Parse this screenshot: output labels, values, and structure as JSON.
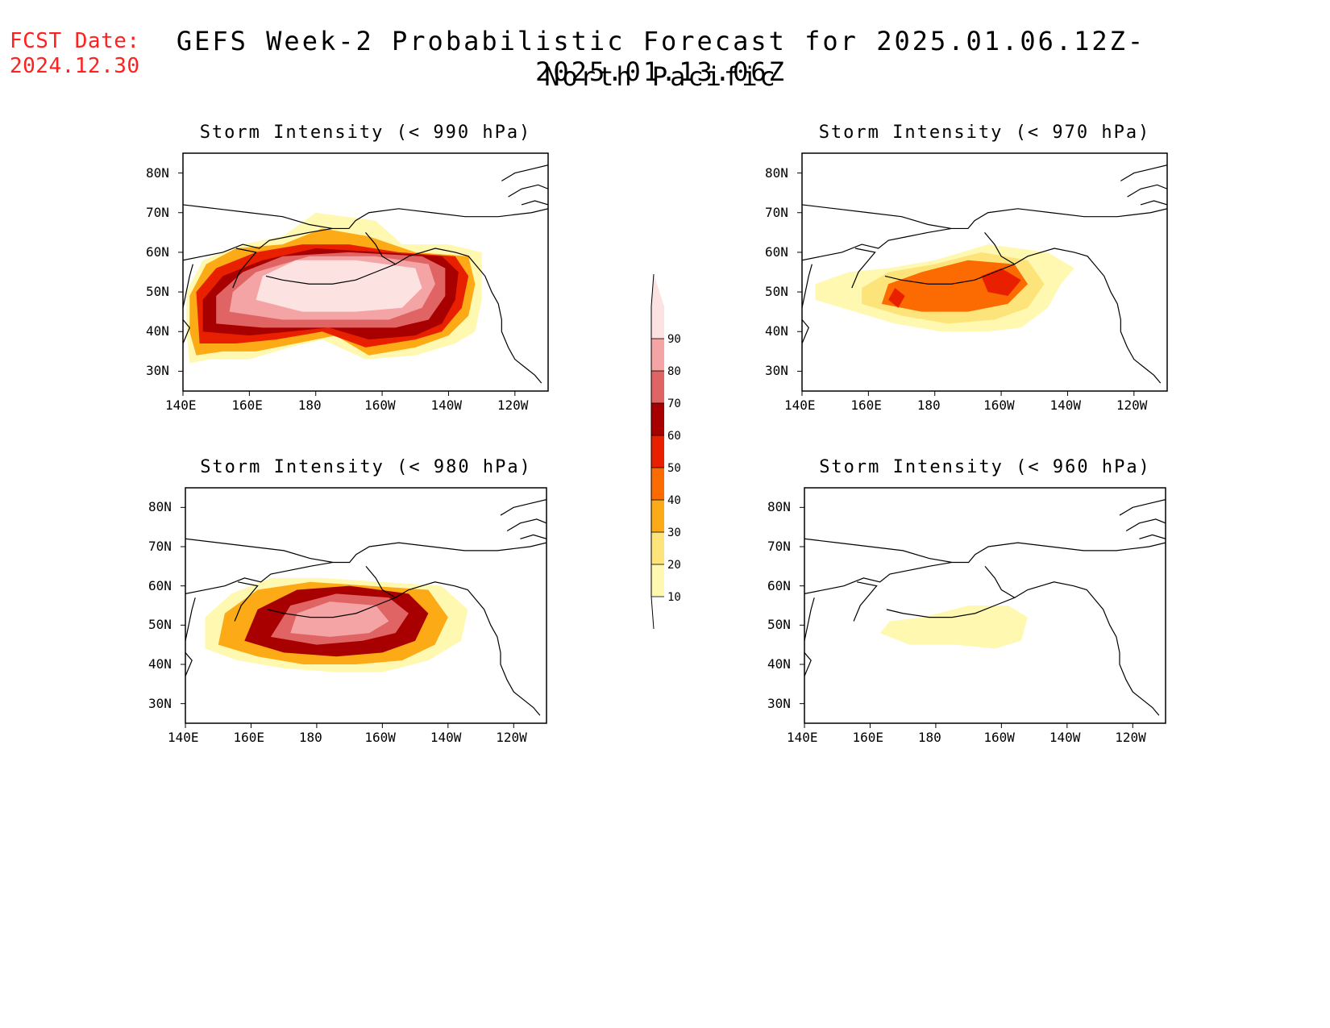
{
  "header": {
    "fcst_label": "FCST Date:",
    "fcst_date": "2024.12.30",
    "title_line1": "GEFS Week-2 Probabilistic Forecast for 2025.01.06.12Z-2025.01.13.06Z",
    "title_line2": "North Pacific"
  },
  "axes": {
    "y_ticks": [
      "80N",
      "70N",
      "60N",
      "50N",
      "40N",
      "30N"
    ],
    "y_values": [
      80,
      70,
      60,
      50,
      40,
      30
    ],
    "x_ticks": [
      "140E",
      "160E",
      "180",
      "160W",
      "140W",
      "120W"
    ],
    "x_values": [
      140,
      160,
      180,
      200,
      220,
      240
    ],
    "lon_range": [
      140,
      250
    ],
    "lat_range": [
      25,
      85
    ]
  },
  "colorbar": {
    "levels": [
      "10",
      "20",
      "30",
      "40",
      "50",
      "60",
      "70",
      "80",
      "90"
    ],
    "colors": [
      "#fff8b0",
      "#fde47a",
      "#fcaa16",
      "#fc6a02",
      "#e82000",
      "#a80000",
      "#e06464",
      "#f4a4a4",
      "#fde2e2"
    ]
  },
  "panels": [
    {
      "id": "p990",
      "title": "Storm Intensity (< 990 hPa)",
      "regions": [
        {
          "level": 10,
          "pts": [
            [
              142,
              32
            ],
            [
              148,
              33
            ],
            [
              160,
              33
            ],
            [
              172,
              36
            ],
            [
              182,
              38
            ],
            [
              195,
              33
            ],
            [
              210,
              34
            ],
            [
              222,
              37
            ],
            [
              228,
              40
            ],
            [
              230,
              48
            ],
            [
              230,
              60
            ],
            [
              220,
              62
            ],
            [
              206,
              62
            ],
            [
              198,
              68
            ],
            [
              180,
              70
            ],
            [
              170,
              64
            ],
            [
              158,
              62
            ],
            [
              146,
              58
            ],
            [
              141,
              50
            ],
            [
              141,
              40
            ]
          ]
        },
        {
          "level": 30,
          "pts": [
            [
              144,
              34
            ],
            [
              152,
              35
            ],
            [
              162,
              35
            ],
            [
              174,
              37
            ],
            [
              186,
              39
            ],
            [
              196,
              34
            ],
            [
              210,
              36
            ],
            [
              220,
              39
            ],
            [
              226,
              44
            ],
            [
              228,
              52
            ],
            [
              226,
              59
            ],
            [
              210,
              60
            ],
            [
              196,
              64
            ],
            [
              182,
              66
            ],
            [
              170,
              62
            ],
            [
              156,
              61
            ],
            [
              147,
              57
            ],
            [
              142,
              49
            ],
            [
              142,
              40
            ]
          ]
        },
        {
          "level": 50,
          "pts": [
            [
              145,
              37
            ],
            [
              156,
              37
            ],
            [
              168,
              38
            ],
            [
              182,
              40
            ],
            [
              195,
              36
            ],
            [
              210,
              38
            ],
            [
              218,
              40
            ],
            [
              224,
              46
            ],
            [
              226,
              54
            ],
            [
              222,
              59
            ],
            [
              205,
              60
            ],
            [
              190,
              62
            ],
            [
              176,
              62
            ],
            [
              162,
              60
            ],
            [
              150,
              56
            ],
            [
              144,
              50
            ]
          ]
        },
        {
          "level": 60,
          "pts": [
            [
              146,
              40
            ],
            [
              160,
              39
            ],
            [
              172,
              40
            ],
            [
              184,
              41
            ],
            [
              196,
              38
            ],
            [
              210,
              39
            ],
            [
              218,
              42
            ],
            [
              222,
              48
            ],
            [
              223,
              55
            ],
            [
              218,
              59
            ],
            [
              200,
              60
            ],
            [
              180,
              61
            ],
            [
              164,
              58
            ],
            [
              152,
              54
            ],
            [
              146,
              48
            ]
          ]
        },
        {
          "level": 70,
          "pts": [
            [
              150,
              42
            ],
            [
              164,
              41
            ],
            [
              176,
              41
            ],
            [
              190,
              41
            ],
            [
              204,
              41
            ],
            [
              214,
              43
            ],
            [
              219,
              49
            ],
            [
              219,
              56
            ],
            [
              212,
              59
            ],
            [
              190,
              60
            ],
            [
              170,
              59
            ],
            [
              158,
              55
            ],
            [
              150,
              49
            ]
          ]
        },
        {
          "level": 80,
          "pts": [
            [
              154,
              45
            ],
            [
              170,
              43
            ],
            [
              186,
              43
            ],
            [
              202,
              43
            ],
            [
              212,
              46
            ],
            [
              216,
              52
            ],
            [
              214,
              57
            ],
            [
              198,
              59
            ],
            [
              178,
              59
            ],
            [
              162,
              55
            ],
            [
              155,
              50
            ]
          ]
        },
        {
          "level": 90,
          "pts": [
            [
              162,
              48
            ],
            [
              176,
              45
            ],
            [
              192,
              45
            ],
            [
              206,
              46
            ],
            [
              212,
              51
            ],
            [
              210,
              56
            ],
            [
              192,
              58
            ],
            [
              174,
              58
            ],
            [
              164,
              54
            ]
          ]
        }
      ]
    },
    {
      "id": "p970",
      "title": "Storm Intensity (< 970 hPa)",
      "regions": [
        {
          "level": 10,
          "pts": [
            [
              144,
              48
            ],
            [
              156,
              45
            ],
            [
              168,
              42
            ],
            [
              182,
              40
            ],
            [
              196,
              40
            ],
            [
              206,
              41
            ],
            [
              214,
              46
            ],
            [
              218,
              52
            ],
            [
              222,
              56
            ],
            [
              214,
              60
            ],
            [
              196,
              62
            ],
            [
              180,
              58
            ],
            [
              166,
              56
            ],
            [
              154,
              55
            ],
            [
              144,
              52
            ]
          ]
        },
        {
          "level": 20,
          "pts": [
            [
              158,
              47
            ],
            [
              170,
              44
            ],
            [
              184,
              42
            ],
            [
              198,
              43
            ],
            [
              208,
              46
            ],
            [
              213,
              52
            ],
            [
              208,
              58
            ],
            [
              194,
              60
            ],
            [
              180,
              57
            ],
            [
              166,
              55
            ],
            [
              158,
              51
            ]
          ]
        },
        {
          "level": 40,
          "pts": [
            [
              164,
              47
            ],
            [
              176,
              45
            ],
            [
              190,
              45
            ],
            [
              202,
              47
            ],
            [
              208,
              52
            ],
            [
              204,
              57
            ],
            [
              190,
              58
            ],
            [
              176,
              55
            ],
            [
              166,
              52
            ]
          ]
        },
        {
          "level": 50,
          "pts": [
            [
              196,
              50
            ],
            [
              202,
              49
            ],
            [
              206,
              53
            ],
            [
              200,
              56
            ],
            [
              194,
              54
            ]
          ]
        },
        {
          "level": 50,
          "pts": [
            [
              166,
              48
            ],
            [
              169,
              46
            ],
            [
              171,
              49
            ],
            [
              168,
              51
            ]
          ]
        }
      ]
    },
    {
      "id": "p980",
      "title": "Storm Intensity (< 980 hPa)",
      "regions": [
        {
          "level": 10,
          "pts": [
            [
              146,
              44
            ],
            [
              156,
              41
            ],
            [
              170,
              39
            ],
            [
              186,
              38
            ],
            [
              200,
              38
            ],
            [
              214,
              41
            ],
            [
              224,
              46
            ],
            [
              226,
              54
            ],
            [
              218,
              60
            ],
            [
              200,
              61
            ],
            [
              182,
              62
            ],
            [
              166,
              62
            ],
            [
              154,
              58
            ],
            [
              146,
              52
            ]
          ]
        },
        {
          "level": 30,
          "pts": [
            [
              150,
              45
            ],
            [
              162,
              42
            ],
            [
              176,
              40
            ],
            [
              192,
              40
            ],
            [
              206,
              41
            ],
            [
              216,
              45
            ],
            [
              220,
              52
            ],
            [
              214,
              59
            ],
            [
              196,
              60
            ],
            [
              178,
              61
            ],
            [
              162,
              59
            ],
            [
              152,
              53
            ]
          ]
        },
        {
          "level": 60,
          "pts": [
            [
              158,
              46
            ],
            [
              170,
              43
            ],
            [
              186,
              42
            ],
            [
              200,
              43
            ],
            [
              210,
              46
            ],
            [
              214,
              53
            ],
            [
              208,
              58
            ],
            [
              190,
              60
            ],
            [
              174,
              59
            ],
            [
              162,
              54
            ]
          ]
        },
        {
          "level": 70,
          "pts": [
            [
              166,
              47
            ],
            [
              180,
              45
            ],
            [
              194,
              46
            ],
            [
              204,
              48
            ],
            [
              208,
              53
            ],
            [
              202,
              57
            ],
            [
              186,
              58
            ],
            [
              172,
              55
            ]
          ]
        },
        {
          "level": 80,
          "pts": [
            [
              172,
              48
            ],
            [
              184,
              47
            ],
            [
              196,
              48
            ],
            [
              202,
              51
            ],
            [
              198,
              55
            ],
            [
              184,
              56
            ],
            [
              174,
              53
            ]
          ]
        }
      ]
    },
    {
      "id": "p960",
      "title": "Storm Intensity (< 960 hPa)",
      "regions": [
        {
          "level": 10,
          "pts": [
            [
              163,
              48
            ],
            [
              172,
              45
            ],
            [
              186,
              45
            ],
            [
              198,
              44
            ],
            [
              206,
              46
            ],
            [
              208,
              52
            ],
            [
              202,
              55
            ],
            [
              190,
              55
            ],
            [
              176,
              52
            ],
            [
              166,
              51
            ]
          ]
        }
      ]
    }
  ]
}
